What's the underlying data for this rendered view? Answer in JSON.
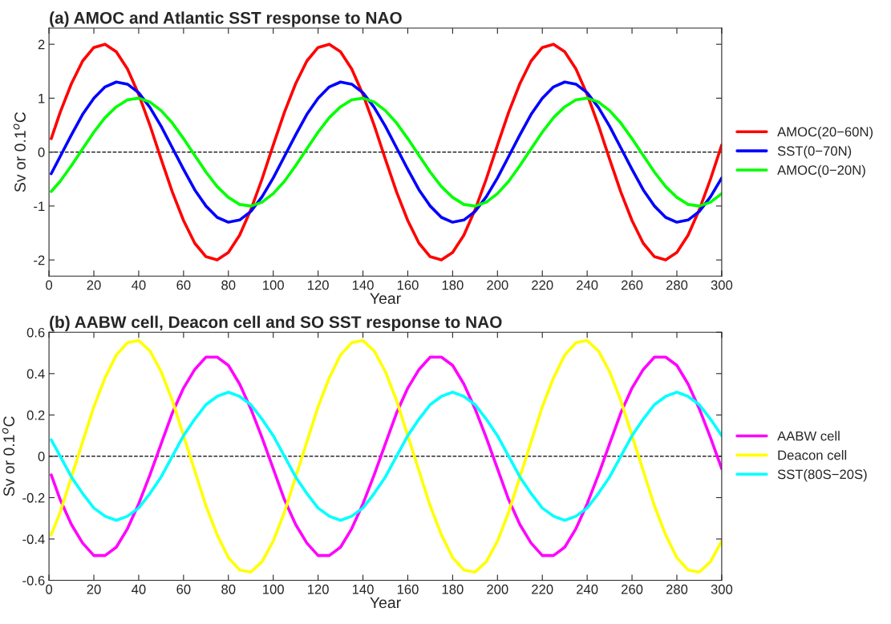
{
  "chart_data": [
    {
      "type": "line",
      "title": "(a) AMOC and Atlantic SST response to NAO",
      "xlabel": "Year",
      "ylabel": "Sv or 0.1$^{o}$C",
      "x": [
        1,
        5,
        10,
        15,
        20,
        25,
        30,
        35,
        40,
        45,
        50,
        55,
        60,
        65,
        70,
        75,
        80,
        85,
        90,
        95,
        100,
        105,
        110,
        115,
        120,
        125,
        130,
        135,
        140,
        145,
        150,
        155,
        160,
        165,
        170,
        175,
        180,
        185,
        190,
        195,
        200,
        205,
        210,
        215,
        220,
        225,
        230,
        235,
        240,
        245,
        250,
        255,
        260,
        265,
        270,
        275,
        280,
        285,
        290,
        295,
        300
      ],
      "series": [
        {
          "name": "AMOC(20−60N)",
          "color": "#ff0000",
          "values": [
            0.25,
            0.74,
            1.27,
            1.69,
            1.94,
            2.0,
            1.86,
            1.54,
            1.07,
            0.5,
            -0.13,
            -0.74,
            -1.27,
            -1.69,
            -1.94,
            -2.0,
            -1.86,
            -1.54,
            -1.07,
            -0.5,
            0.13,
            0.74,
            1.27,
            1.69,
            1.94,
            2.0,
            1.86,
            1.54,
            1.07,
            0.5,
            -0.13,
            -0.74,
            -1.27,
            -1.69,
            -1.94,
            -2.0,
            -1.86,
            -1.54,
            -1.07,
            -0.5,
            0.13,
            0.74,
            1.27,
            1.69,
            1.94,
            2.0,
            1.86,
            1.54,
            1.07,
            0.5,
            -0.13,
            -0.74,
            -1.27,
            -1.69,
            -1.94,
            -2.0,
            -1.86,
            -1.54,
            -1.07,
            -0.5,
            0.13
          ]
        },
        {
          "name": "SST(0−70N)",
          "color": "#0000ff",
          "values": [
            -0.4,
            -0.08,
            0.32,
            0.7,
            1.0,
            1.21,
            1.3,
            1.26,
            1.1,
            0.83,
            0.48,
            0.08,
            -0.32,
            -0.7,
            -1.0,
            -1.21,
            -1.3,
            -1.26,
            -1.1,
            -0.83,
            -0.48,
            -0.08,
            0.32,
            0.7,
            1.0,
            1.21,
            1.3,
            1.26,
            1.1,
            0.83,
            0.48,
            0.08,
            -0.32,
            -0.7,
            -1.0,
            -1.21,
            -1.3,
            -1.26,
            -1.1,
            -0.83,
            -0.48,
            -0.08,
            0.32,
            0.7,
            1.0,
            1.21,
            1.3,
            1.26,
            1.1,
            0.83,
            0.48,
            0.08,
            -0.32,
            -0.7,
            -1.0,
            -1.21,
            -1.3,
            -1.26,
            -1.1,
            -0.83,
            -0.48
          ]
        },
        {
          "name": "AMOC(0−20N)",
          "color": "#00ff00",
          "values": [
            -0.73,
            -0.54,
            -0.25,
            0.06,
            0.37,
            0.64,
            0.84,
            0.97,
            1.0,
            0.93,
            0.77,
            0.54,
            0.25,
            -0.06,
            -0.37,
            -0.64,
            -0.84,
            -0.97,
            -1.0,
            -0.93,
            -0.77,
            -0.54,
            -0.25,
            0.06,
            0.37,
            0.64,
            0.84,
            0.97,
            1.0,
            0.93,
            0.77,
            0.54,
            0.25,
            -0.06,
            -0.37,
            -0.64,
            -0.84,
            -0.97,
            -1.0,
            -0.93,
            -0.77,
            -0.54,
            -0.25,
            0.06,
            0.37,
            0.64,
            0.84,
            0.97,
            1.0,
            0.93,
            0.77,
            0.54,
            0.25,
            -0.06,
            -0.37,
            -0.64,
            -0.84,
            -0.97,
            -1.0,
            -0.93,
            -0.77
          ]
        }
      ],
      "xlim": [
        0,
        300
      ],
      "xticks": [
        0,
        20,
        40,
        60,
        80,
        100,
        120,
        140,
        160,
        180,
        200,
        220,
        240,
        260,
        280,
        300
      ],
      "ylim": [
        -2.3,
        2.3
      ],
      "yticks": [
        -2,
        -1,
        0,
        1,
        2
      ],
      "ref_lines": [
        {
          "axis": "y",
          "value": 0,
          "color": "#000000",
          "line_style": "dashed"
        }
      ],
      "legend": "right",
      "grid": false
    },
    {
      "type": "line",
      "title": "(b) AABW cell, Deacon cell and SO SST response to NAO",
      "xlabel": "Year",
      "ylabel": "Sv or 0.1$^{o}$C",
      "x": [
        1,
        5,
        10,
        15,
        20,
        25,
        30,
        35,
        40,
        45,
        50,
        55,
        60,
        65,
        70,
        75,
        80,
        85,
        90,
        95,
        100,
        105,
        110,
        115,
        120,
        125,
        130,
        135,
        140,
        145,
        150,
        155,
        160,
        165,
        170,
        175,
        180,
        185,
        190,
        195,
        200,
        205,
        210,
        215,
        220,
        225,
        230,
        235,
        240,
        245,
        250,
        255,
        260,
        265,
        270,
        275,
        280,
        285,
        290,
        295,
        300
      ],
      "series": [
        {
          "name": "AABW cell",
          "color": "#ff00ff",
          "values": [
            -0.09,
            -0.21,
            -0.33,
            -0.42,
            -0.48,
            -0.48,
            -0.44,
            -0.35,
            -0.23,
            -0.09,
            0.06,
            0.21,
            0.33,
            0.42,
            0.48,
            0.48,
            0.44,
            0.35,
            0.23,
            0.09,
            -0.06,
            -0.21,
            -0.33,
            -0.42,
            -0.48,
            -0.48,
            -0.44,
            -0.35,
            -0.23,
            -0.09,
            0.06,
            0.21,
            0.33,
            0.42,
            0.48,
            0.48,
            0.44,
            0.35,
            0.23,
            0.09,
            -0.06,
            -0.21,
            -0.33,
            -0.42,
            -0.48,
            -0.48,
            -0.44,
            -0.35,
            -0.23,
            -0.09,
            0.06,
            0.21,
            0.33,
            0.42,
            0.48,
            0.48,
            0.44,
            0.35,
            0.23,
            0.09,
            -0.06
          ]
        },
        {
          "name": "Deacon cell",
          "color": "#ffff00",
          "values": [
            -0.38,
            -0.27,
            -0.1,
            0.07,
            0.24,
            0.38,
            0.49,
            0.55,
            0.56,
            0.51,
            0.41,
            0.27,
            0.1,
            -0.07,
            -0.24,
            -0.38,
            -0.49,
            -0.55,
            -0.56,
            -0.51,
            -0.41,
            -0.27,
            -0.1,
            0.07,
            0.24,
            0.38,
            0.49,
            0.55,
            0.56,
            0.51,
            0.41,
            0.27,
            0.1,
            -0.07,
            -0.24,
            -0.38,
            -0.49,
            -0.55,
            -0.56,
            -0.51,
            -0.41,
            -0.27,
            -0.1,
            0.07,
            0.24,
            0.38,
            0.49,
            0.55,
            0.56,
            0.51,
            0.41,
            0.27,
            0.1,
            -0.07,
            -0.24,
            -0.38,
            -0.49,
            -0.55,
            -0.56,
            -0.51,
            -0.41
          ]
        },
        {
          "name": "SST(80S−20S)",
          "color": "#00ffff",
          "values": [
            0.08,
            0,
            -0.1,
            -0.18,
            -0.25,
            -0.29,
            -0.31,
            -0.29,
            -0.25,
            -0.18,
            -0.1,
            0,
            0.1,
            0.18,
            0.25,
            0.29,
            0.31,
            0.29,
            0.25,
            0.18,
            0.1,
            0,
            -0.1,
            -0.18,
            -0.25,
            -0.29,
            -0.31,
            -0.29,
            -0.25,
            -0.18,
            -0.1,
            0,
            0.1,
            0.18,
            0.25,
            0.29,
            0.31,
            0.29,
            0.25,
            0.18,
            0.1,
            0,
            -0.1,
            -0.18,
            -0.25,
            -0.29,
            -0.31,
            -0.29,
            -0.25,
            -0.18,
            -0.1,
            0,
            0.1,
            0.18,
            0.25,
            0.29,
            0.31,
            0.29,
            0.25,
            0.18,
            0.1
          ]
        }
      ],
      "xlim": [
        0,
        300
      ],
      "xticks": [
        0,
        20,
        40,
        60,
        80,
        100,
        120,
        140,
        160,
        180,
        200,
        220,
        240,
        260,
        280,
        300
      ],
      "ylim": [
        -0.6,
        0.6
      ],
      "yticks": [
        -0.6,
        -0.4,
        -0.2,
        0,
        0.2,
        0.4,
        0.6
      ],
      "ref_lines": [
        {
          "axis": "y",
          "value": 0,
          "color": "#000000",
          "line_style": "dashed"
        }
      ],
      "legend": "right",
      "grid": false
    }
  ]
}
